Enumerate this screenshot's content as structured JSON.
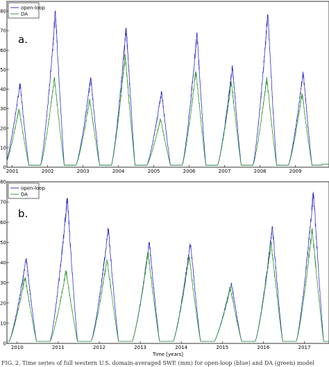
{
  "chart_data": [
    {
      "type": "line",
      "panel_label": "a.",
      "title": "",
      "xlabel": "",
      "ylabel": "",
      "xlim": [
        2000.85,
        2009.95
      ],
      "ylim": [
        0,
        85
      ],
      "yticks": [
        0,
        10,
        20,
        30,
        40,
        50,
        60,
        70,
        80
      ],
      "xtick_labels": [
        "2001",
        "2002",
        "2003",
        "2004",
        "2005",
        "2006",
        "2007",
        "2008",
        "2009"
      ],
      "legend_position": "top-left",
      "series": [
        {
          "name": "open-loop",
          "color": "#3333cc",
          "peaks": [
            43,
            80,
            46,
            72,
            39,
            69,
            52,
            79,
            49
          ]
        },
        {
          "name": "DA",
          "color": "#339933",
          "peaks": [
            30,
            46,
            35,
            58,
            25,
            50,
            44,
            46,
            38
          ]
        }
      ]
    },
    {
      "type": "line",
      "panel_label": "b.",
      "title": "",
      "xlabel": "Time [years]",
      "ylabel": "",
      "xlim": [
        2009.75,
        2017.6
      ],
      "ylim": [
        0,
        80
      ],
      "yticks": [
        0,
        10,
        20,
        30,
        40,
        50,
        60,
        70,
        80
      ],
      "xtick_labels": [
        "2010",
        "2011",
        "2012",
        "2013",
        "2014",
        "2015",
        "2016",
        "2017"
      ],
      "legend_position": "top-left",
      "series": [
        {
          "name": "open-loop",
          "color": "#3333cc",
          "peaks": [
            42,
            72,
            57,
            50,
            50,
            30,
            58,
            75
          ]
        },
        {
          "name": "DA",
          "color": "#339933",
          "peaks": [
            33,
            36,
            42,
            45,
            43,
            28,
            50,
            57
          ]
        }
      ]
    }
  ],
  "caption": "FIG. 2. Time series of full western U.S. domain-averaged SWE (mm) for open-loop (blue) and DA (green) model"
}
